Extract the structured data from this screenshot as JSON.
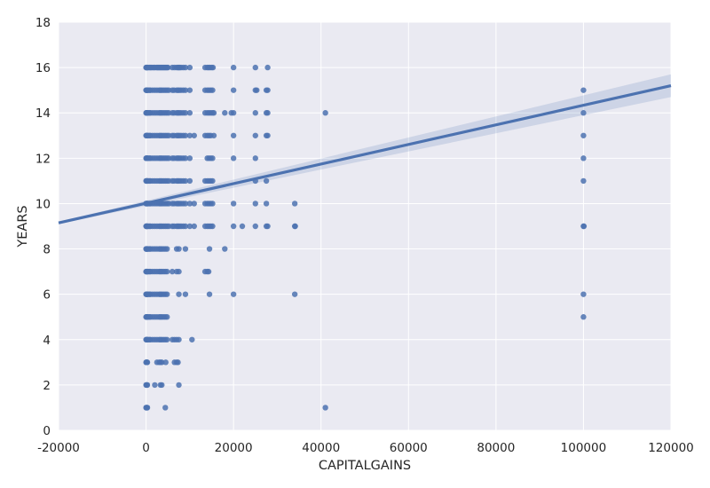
{
  "chart_data": {
    "type": "scatter",
    "title": "",
    "xlabel": "CAPITALGAINS",
    "ylabel": "YEARS",
    "xlim": [
      -20000,
      120000
    ],
    "ylim": [
      0,
      18
    ],
    "xticks": [
      -20000,
      0,
      20000,
      40000,
      60000,
      80000,
      100000,
      120000
    ],
    "yticks": [
      0,
      2,
      4,
      6,
      8,
      10,
      12,
      14,
      16,
      18
    ],
    "grid": true,
    "legend": "none",
    "colors": {
      "background": "#eaeaf2",
      "grid": "#ffffff",
      "points": "#4c72b0",
      "line": "#4c72b0",
      "band": "#4c72b0"
    },
    "regression": {
      "x": [
        -20000,
        120000
      ],
      "y": [
        9.15,
        15.2
      ],
      "ci_upper": [
        9.2,
        15.7
      ],
      "ci_lower": [
        9.1,
        14.7
      ]
    },
    "series": [
      {
        "x": [
          0,
          100,
          200,
          300,
          500,
          800,
          1000,
          1200,
          1500,
          1800,
          2000,
          2400,
          2600,
          2800,
          3000,
          3200,
          3400,
          3600,
          3800,
          4000,
          4200,
          4400,
          4600,
          4800,
          5000,
          6000,
          6500,
          7000,
          7300,
          7500,
          7700,
          8000,
          8500,
          9000,
          10000,
          13500,
          14000,
          14300,
          14600,
          15000,
          15300,
          20000,
          25000,
          27800,
          0,
          100,
          200,
          300,
          500,
          800,
          1000,
          1500,
          2000,
          2500,
          3000,
          3300,
          3600,
          4000,
          4400,
          4800,
          5200,
          6000,
          6400,
          7000,
          7300,
          7600,
          8000,
          8500,
          9000,
          10000,
          13500,
          14000,
          14400,
          14800,
          15200,
          20000,
          25000,
          25300,
          27500,
          27800,
          100000,
          0,
          100,
          200,
          300,
          500,
          800,
          1000,
          1500,
          2000,
          2500,
          3000,
          3300,
          3600,
          4000,
          4400,
          4800,
          5200,
          6000,
          6400,
          7000,
          7300,
          7600,
          8000,
          8500,
          9000,
          10000,
          13500,
          14000,
          14400,
          14800,
          15200,
          15500,
          18000,
          19500,
          20000,
          25000,
          27500,
          27800,
          41000,
          100000,
          0,
          100,
          200,
          300,
          500,
          800,
          1000,
          1500,
          2000,
          2500,
          3000,
          3300,
          3600,
          4000,
          4400,
          4800,
          5200,
          6000,
          6400,
          7000,
          7300,
          7600,
          8000,
          8500,
          9000,
          10000,
          11000,
          13500,
          14000,
          14400,
          14800,
          15500,
          20000,
          25000,
          27500,
          27800,
          100000,
          0,
          100,
          200,
          300,
          500,
          800,
          1000,
          1500,
          2000,
          2500,
          3000,
          3300,
          3600,
          4000,
          4400,
          4800,
          5200,
          6000,
          6400,
          7000,
          7300,
          7600,
          8000,
          8500,
          9000,
          10000,
          14000,
          14400,
          14800,
          15200,
          20000,
          25000,
          100000,
          0,
          100,
          200,
          300,
          500,
          800,
          1000,
          1500,
          2000,
          2500,
          3000,
          3300,
          3600,
          4000,
          4400,
          4800,
          5200,
          6000,
          6400,
          7000,
          7300,
          7600,
          8000,
          8500,
          9000,
          10000,
          13500,
          14000,
          14400,
          14800,
          15200,
          25000,
          27500,
          100000,
          0,
          100,
          200,
          300,
          500,
          800,
          1000,
          1500,
          2000,
          2500,
          3000,
          3300,
          3600,
          4000,
          4400,
          4800,
          5200,
          6000,
          6400,
          7000,
          7300,
          7600,
          8000,
          8500,
          9000,
          10000,
          11000,
          13500,
          14000,
          14400,
          14800,
          15200,
          20000,
          25000,
          27500,
          34000,
          0,
          100,
          200,
          300,
          500,
          800,
          1000,
          1500,
          2000,
          2500,
          3000,
          3300,
          3600,
          4000,
          4400,
          4800,
          5200,
          6000,
          6400,
          7000,
          7300,
          7600,
          8000,
          8500,
          9000,
          10000,
          11000,
          13500,
          14000,
          14400,
          14800,
          15200,
          20000,
          22000,
          25000,
          27500,
          27800,
          34000,
          34100,
          100000,
          100100,
          0,
          100,
          200,
          300,
          500,
          800,
          1000,
          1500,
          2000,
          2500,
          3000,
          3300,
          3600,
          4000,
          4400,
          4800,
          7000,
          7500,
          9000,
          14500,
          18000,
          0,
          100,
          200,
          300,
          500,
          800,
          1000,
          1500,
          2000,
          2500,
          3000,
          3300,
          3600,
          4000,
          4400,
          4800,
          6000,
          7000,
          7500,
          13500,
          14000,
          14300,
          0,
          100,
          200,
          300,
          500,
          800,
          1000,
          1500,
          2000,
          2500,
          3000,
          3300,
          3600,
          4000,
          4400,
          4800,
          7500,
          9000,
          14500,
          20000,
          34000,
          100000,
          0,
          100,
          200,
          300,
          500,
          800,
          1000,
          1500,
          2000,
          2500,
          3000,
          3300,
          3600,
          4000,
          4400,
          4800,
          100000,
          0,
          100,
          200,
          300,
          500,
          800,
          1000,
          1500,
          2000,
          2500,
          3000,
          3300,
          3600,
          4000,
          4400,
          4800,
          6000,
          6500,
          7000,
          7500,
          10500,
          0,
          100,
          200,
          300,
          2500,
          3000,
          3300,
          3600,
          4500,
          6500,
          7000,
          7300,
          0,
          100,
          200,
          300,
          2000,
          3300,
          3600,
          7500,
          0,
          100,
          200,
          300,
          4400,
          41000
        ],
        "y": [
          16,
          16,
          16,
          16,
          16,
          16,
          16,
          16,
          16,
          16,
          16,
          16,
          16,
          16,
          16,
          16,
          16,
          16,
          16,
          16,
          16,
          16,
          16,
          16,
          16,
          16,
          16,
          16,
          16,
          16,
          16,
          16,
          16,
          16,
          16,
          16,
          16,
          16,
          16,
          16,
          16,
          16,
          16,
          16,
          15,
          15,
          15,
          15,
          15,
          15,
          15,
          15,
          15,
          15,
          15,
          15,
          15,
          15,
          15,
          15,
          15,
          15,
          15,
          15,
          15,
          15,
          15,
          15,
          15,
          15,
          15,
          15,
          15,
          15,
          15,
          15,
          15,
          15,
          15,
          15,
          15,
          14,
          14,
          14,
          14,
          14,
          14,
          14,
          14,
          14,
          14,
          14,
          14,
          14,
          14,
          14,
          14,
          14,
          14,
          14,
          14,
          14,
          14,
          14,
          14,
          14,
          14,
          14,
          14,
          14,
          14,
          14,
          14,
          14,
          14,
          14,
          14,
          14,
          14,
          14,
          14,
          13,
          13,
          13,
          13,
          13,
          13,
          13,
          13,
          13,
          13,
          13,
          13,
          13,
          13,
          13,
          13,
          13,
          13,
          13,
          13,
          13,
          13,
          13,
          13,
          13,
          13,
          13,
          13,
          13,
          13,
          13,
          13,
          13,
          13,
          13,
          13,
          13,
          12,
          12,
          12,
          12,
          12,
          12,
          12,
          12,
          12,
          12,
          12,
          12,
          12,
          12,
          12,
          12,
          12,
          12,
          12,
          12,
          12,
          12,
          12,
          12,
          12,
          12,
          12,
          12,
          12,
          12,
          12,
          12,
          12,
          11,
          11,
          11,
          11,
          11,
          11,
          11,
          11,
          11,
          11,
          11,
          11,
          11,
          11,
          11,
          11,
          11,
          11,
          11,
          11,
          11,
          11,
          11,
          11,
          11,
          11,
          11,
          11,
          11,
          11,
          11,
          11,
          11,
          11,
          10,
          10,
          10,
          10,
          10,
          10,
          10,
          10,
          10,
          10,
          10,
          10,
          10,
          10,
          10,
          10,
          10,
          10,
          10,
          10,
          10,
          10,
          10,
          10,
          10,
          10,
          10,
          10,
          10,
          10,
          10,
          10,
          10,
          10,
          10,
          10,
          9,
          9,
          9,
          9,
          9,
          9,
          9,
          9,
          9,
          9,
          9,
          9,
          9,
          9,
          9,
          9,
          9,
          9,
          9,
          9,
          9,
          9,
          9,
          9,
          9,
          9,
          9,
          9,
          9,
          9,
          9,
          9,
          9,
          9,
          9,
          9,
          9,
          9,
          9,
          9,
          9,
          8,
          8,
          8,
          8,
          8,
          8,
          8,
          8,
          8,
          8,
          8,
          8,
          8,
          8,
          8,
          8,
          8,
          8,
          8,
          8,
          8,
          7,
          7,
          7,
          7,
          7,
          7,
          7,
          7,
          7,
          7,
          7,
          7,
          7,
          7,
          7,
          7,
          7,
          7,
          7,
          7,
          7,
          7,
          6,
          6,
          6,
          6,
          6,
          6,
          6,
          6,
          6,
          6,
          6,
          6,
          6,
          6,
          6,
          6,
          6,
          6,
          6,
          6,
          6,
          6,
          5,
          5,
          5,
          5,
          5,
          5,
          5,
          5,
          5,
          5,
          5,
          5,
          5,
          5,
          5,
          5,
          5,
          4,
          4,
          4,
          4,
          4,
          4,
          4,
          4,
          4,
          4,
          4,
          4,
          4,
          4,
          4,
          4,
          4,
          4,
          4,
          4,
          4,
          3,
          3,
          3,
          3,
          3,
          3,
          3,
          3,
          3,
          3,
          3,
          3,
          2,
          2,
          2,
          2,
          2,
          2,
          2,
          2,
          1,
          1,
          1,
          1,
          1,
          1
        ]
      }
    ]
  }
}
